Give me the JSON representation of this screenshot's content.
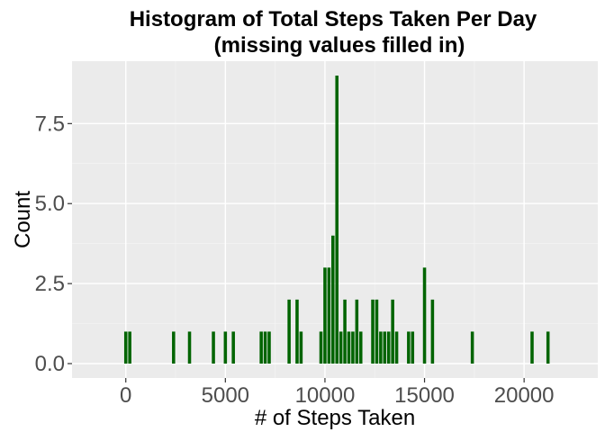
{
  "chart_data": {
    "type": "bar",
    "title": "Histogram of Total Steps Taken Per Day",
    "subtitle": "(missing values filled in)",
    "xlabel": "# of Steps Taken",
    "ylabel": "Count",
    "xlim": [
      -2700,
      23700
    ],
    "ylim": [
      -0.45,
      9.45
    ],
    "x_ticks": [
      0,
      5000,
      10000,
      15000,
      20000
    ],
    "x_tick_labels": [
      "0",
      "5000",
      "10000",
      "15000",
      "20000"
    ],
    "y_ticks": [
      0,
      2.5,
      5,
      7.5
    ],
    "y_tick_labels": [
      "0.0",
      "2.5",
      "5.0",
      "7.5"
    ],
    "bin_width": 200,
    "bar_color": "#006400",
    "panel_color": "#ebebeb",
    "grid": true,
    "bins": [
      {
        "x": 0,
        "count": 1
      },
      {
        "x": 200,
        "count": 1
      },
      {
        "x": 2400,
        "count": 1
      },
      {
        "x": 3200,
        "count": 1
      },
      {
        "x": 4400,
        "count": 1
      },
      {
        "x": 5000,
        "count": 1
      },
      {
        "x": 5400,
        "count": 1
      },
      {
        "x": 6800,
        "count": 1
      },
      {
        "x": 7000,
        "count": 1
      },
      {
        "x": 7200,
        "count": 1
      },
      {
        "x": 8200,
        "count": 2
      },
      {
        "x": 8600,
        "count": 2
      },
      {
        "x": 8800,
        "count": 1
      },
      {
        "x": 9800,
        "count": 1
      },
      {
        "x": 10000,
        "count": 3
      },
      {
        "x": 10200,
        "count": 3
      },
      {
        "x": 10400,
        "count": 4
      },
      {
        "x": 10600,
        "count": 9
      },
      {
        "x": 10800,
        "count": 1
      },
      {
        "x": 11000,
        "count": 2
      },
      {
        "x": 11200,
        "count": 1
      },
      {
        "x": 11400,
        "count": 1
      },
      {
        "x": 11600,
        "count": 2
      },
      {
        "x": 11800,
        "count": 1
      },
      {
        "x": 12400,
        "count": 2
      },
      {
        "x": 12600,
        "count": 2
      },
      {
        "x": 12800,
        "count": 1
      },
      {
        "x": 13000,
        "count": 1
      },
      {
        "x": 13200,
        "count": 1
      },
      {
        "x": 13400,
        "count": 2
      },
      {
        "x": 13600,
        "count": 1
      },
      {
        "x": 14200,
        "count": 1
      },
      {
        "x": 14400,
        "count": 1
      },
      {
        "x": 15000,
        "count": 3
      },
      {
        "x": 15400,
        "count": 2
      },
      {
        "x": 17400,
        "count": 1
      },
      {
        "x": 20400,
        "count": 1
      },
      {
        "x": 21200,
        "count": 1
      }
    ]
  }
}
